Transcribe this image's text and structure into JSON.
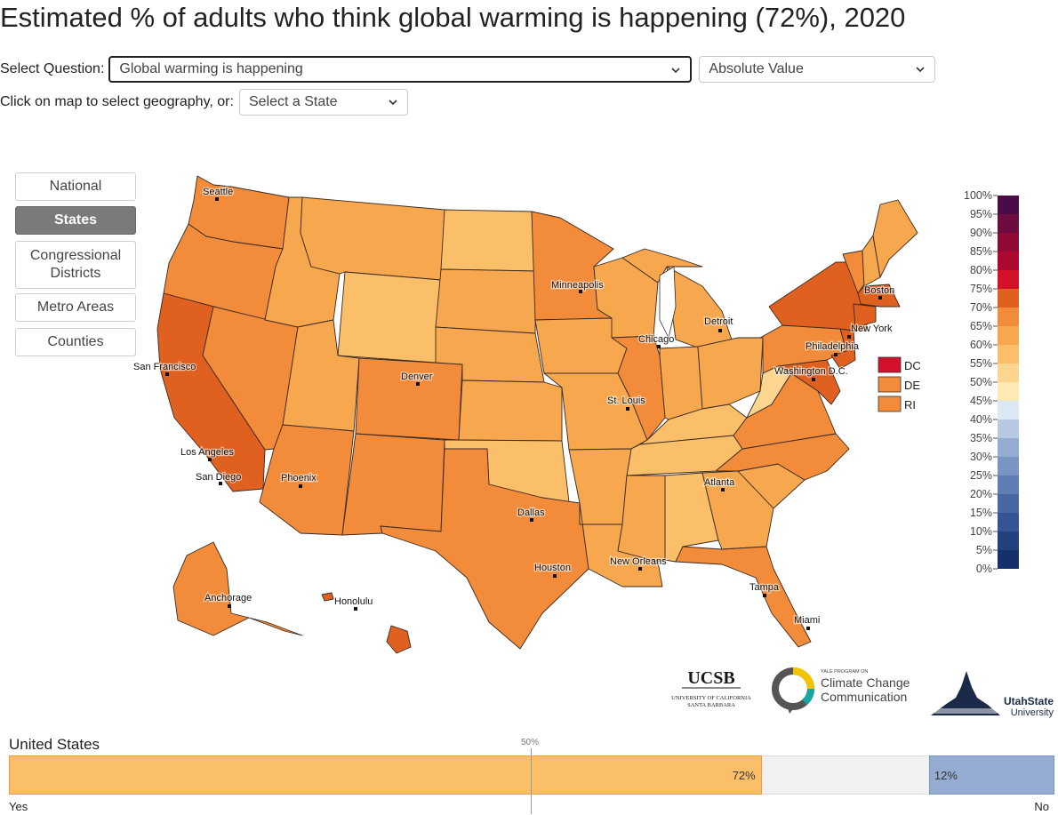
{
  "title": "Estimated % of adults who think global warming is happening (72%), 2020",
  "controls": {
    "question_label": "Select Question:",
    "question_value": "Global warming is happening",
    "measure_value": "Absolute Value",
    "geo_label": "Click on map to select geography, or:",
    "state_value": "Select a State"
  },
  "geography_buttons": [
    {
      "label": "National",
      "active": false
    },
    {
      "label": "States",
      "active": true
    },
    {
      "label": "Congressional Districts",
      "active": false
    },
    {
      "label": "Metro Areas",
      "active": false
    },
    {
      "label": "Counties",
      "active": false
    }
  ],
  "legend": {
    "ticks": [
      "100%",
      "95%",
      "90%",
      "85%",
      "80%",
      "75%",
      "70%",
      "65%",
      "60%",
      "55%",
      "50%",
      "45%",
      "40%",
      "35%",
      "30%",
      "25%",
      "20%",
      "15%",
      "10%",
      "5%",
      "0%"
    ],
    "colors_top_down": [
      "#4a0c46",
      "#6d0c3f",
      "#8e0a35",
      "#ab0a2e",
      "#d3112b",
      "#e0611f",
      "#f28c3b",
      "#f7a84e",
      "#fbbf69",
      "#fcd58f",
      "#fde9b2",
      "#dde8f5",
      "#b7c9e2",
      "#95acd2",
      "#7a95c3",
      "#607db4",
      "#4967a3",
      "#355494",
      "#22417f",
      "#15306a",
      "#0b1f55"
    ]
  },
  "small_states": [
    {
      "label": "DC",
      "color": "#d3112b"
    },
    {
      "label": "DE",
      "color": "#f28c3b"
    },
    {
      "label": "RI",
      "color": "#f28c3b"
    }
  ],
  "cities": [
    "Seattle",
    "San Francisco",
    "Los Angeles",
    "San Diego",
    "Phoenix",
    "Denver",
    "Dallas",
    "Houston",
    "Minneapolis",
    "Chicago",
    "Detroit",
    "St. Louis",
    "New Orleans",
    "Atlanta",
    "Tampa",
    "Miami",
    "Washington D.C.",
    "Philadelphia",
    "New York",
    "Boston",
    "Anchorage",
    "Honolulu"
  ],
  "logos": {
    "ucsb": "UCSB",
    "ucsb_sub1": "UNIVERSITY OF CALIFORNIA",
    "ucsb_sub2": "SANTA BARBARA",
    "yale_small": "YALE PROGRAM ON",
    "yale_line1": "Climate Change",
    "yale_line2": "Communication",
    "usu_line1": "UtahState",
    "usu_line2": "University"
  },
  "summary": {
    "region": "United States",
    "yes_label": "Yes",
    "no_label": "No",
    "fifty_label": "50%",
    "yes_value": 72,
    "no_value": 12,
    "yes_text": "72%",
    "no_text": "12%"
  }
}
